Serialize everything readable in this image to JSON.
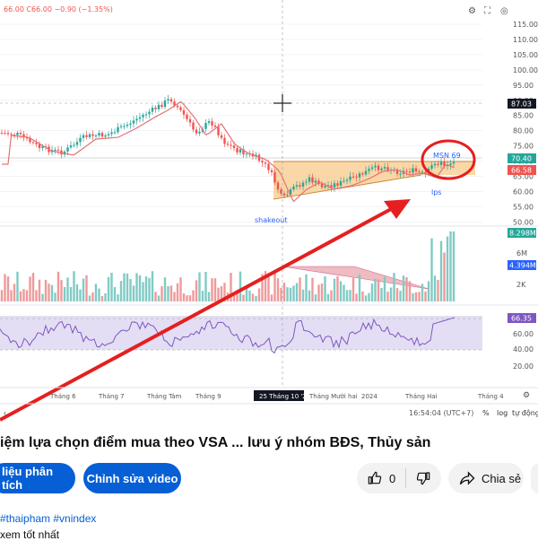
{
  "chart": {
    "ohlc_header": "66.00 C66.00 −0.90 (−1.35%)",
    "right_axis_ticks": [
      "115.00",
      "110.00",
      "105.00",
      "100.00",
      "95.00",
      "90.00",
      "85.00",
      "80.00",
      "75.00",
      "70.00",
      "65.00",
      "60.00",
      "55.00",
      "50.00"
    ],
    "price_badges": {
      "crosshair": "87.03",
      "current": "70.40",
      "ma": "66.58"
    },
    "volume_badges": {
      "v1": "8.298M",
      "v2": "4.394M"
    },
    "volume_ticks": [
      "6M",
      "2K"
    ],
    "rsi_ticks": [
      "60.00",
      "40.00",
      "20.00"
    ],
    "rsi_badge": "66.35",
    "annotations": {
      "shakeout": "shakeout",
      "msn": "MSN 69",
      "lps": "lps"
    },
    "x_axis_labels": [
      "Tháng 6",
      "Tháng 7",
      "Tháng Tám",
      "Tháng 9",
      "25 Tháng 10 '23",
      "Tháng Mười hai",
      "2024",
      "Tháng Hai",
      "Tháng 4"
    ],
    "footer_time": "16:54:04 (UTC+7)",
    "footer_buttons": [
      "%",
      "log",
      "tự động"
    ],
    "colors": {
      "up": "#26a69a",
      "down": "#ef5350",
      "arrow": "#e51f1f",
      "ma": "#e57373",
      "zone": "#f7c98a",
      "rsi_band": "#d9d4ee"
    }
  },
  "video": {
    "title": "iệm lựa chọn điểm mua theo VSA ... lưu ý nhóm BĐS, Thủy sản",
    "primary_button": "liệu phân tích",
    "edit_button": "Chỉnh sửa video",
    "like_count": "0",
    "share_label": "Chia sẻ",
    "hashtags": "#thaipham #vnindex",
    "description": "xem tốt nhất"
  }
}
